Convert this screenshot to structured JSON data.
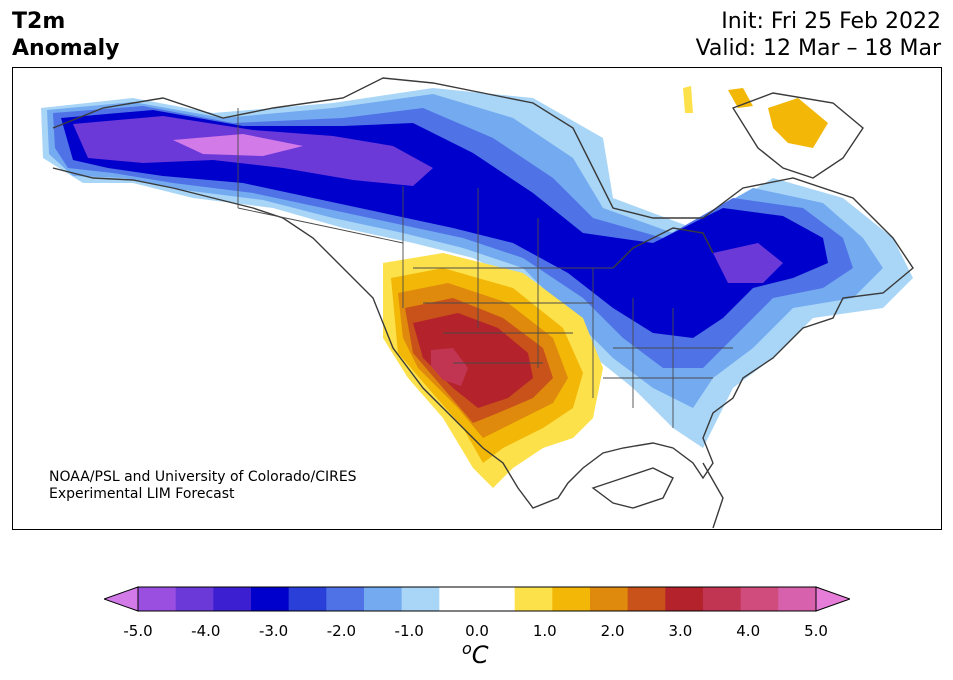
{
  "title": {
    "left_line1": "T2m",
    "left_line2": "Anomaly",
    "right_line1": "Init: Fri 25 Feb 2022",
    "right_line2": "Valid: 12 Mar – 18 Mar"
  },
  "credit": {
    "line1": "NOAA/PSL and University of Colorado/CIRES",
    "line2": "Experimental LIM Forecast"
  },
  "colorbar": {
    "ticks": [
      "-5.0",
      "-4.0",
      "-3.0",
      "-2.0",
      "-1.0",
      "0.0",
      "1.0",
      "2.0",
      "3.0",
      "4.0",
      "5.0"
    ],
    "unit_sup": "o",
    "unit": "C",
    "colors": [
      "#9b4fe0",
      "#6c39d9",
      "#3b1fd0",
      "#0000cc",
      "#2a3fd8",
      "#4f73e6",
      "#74aaf0",
      "#a9d6f7",
      "#ffffff",
      "#ffffff",
      "#fde14a",
      "#f2b707",
      "#df8a0c",
      "#c9511a",
      "#b4222b",
      "#c13452",
      "#d04c7d",
      "#d861ad"
    ],
    "min_color": "#d17ae8",
    "max_color": "#e67dd9"
  }
}
